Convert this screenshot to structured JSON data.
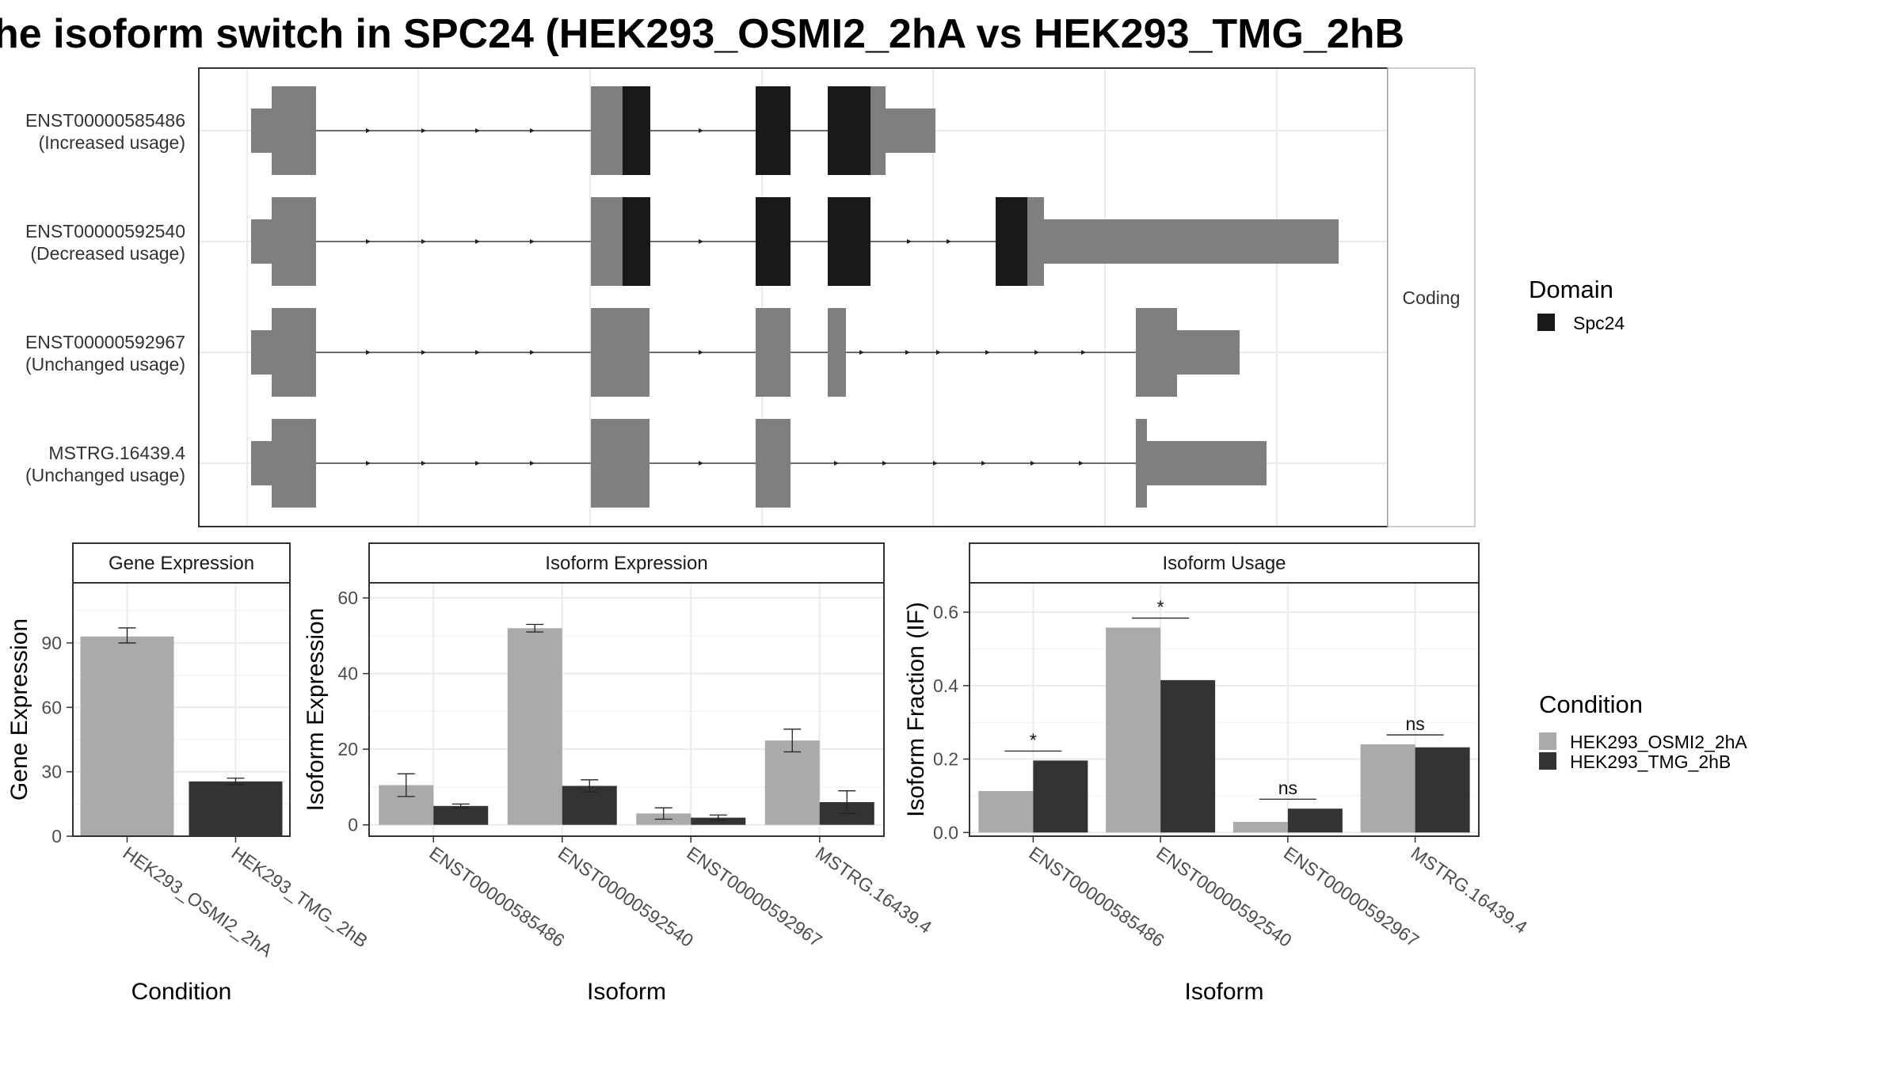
{
  "title": "he isoform switch in SPC24 (HEK293_OSMI2_2hA vs HEK293_TMG_2hB",
  "colors": {
    "cond_a": "#aaaaaa",
    "cond_b": "#333333",
    "exon": "#7f7f7f",
    "domain": "#191919",
    "panel_border": "#333333",
    "strip_fill": "#ffffff",
    "grid": "#ebebeb",
    "text": "#333333"
  },
  "structure": {
    "facet_label": "Coding",
    "transcripts": [
      {
        "id": "ENST00000585486",
        "usage": "(Increased usage)"
      },
      {
        "id": "ENST00000592540",
        "usage": "(Decreased usage)"
      },
      {
        "id": "ENST00000592967",
        "usage": "(Unchanged usage)"
      },
      {
        "id": "MSTRG.16439.4",
        "usage": "(Unchanged usage)"
      }
    ]
  },
  "legends": {
    "domain": {
      "title": "Domain",
      "items": [
        {
          "label": "Spc24",
          "color": "#191919"
        }
      ]
    },
    "condition": {
      "title": "Condition",
      "items": [
        {
          "label": "HEK293_OSMI2_2hA",
          "color": "#aaaaaa"
        },
        {
          "label": "HEK293_TMG_2hB",
          "color": "#333333"
        }
      ]
    }
  },
  "chart_data": [
    {
      "type": "bar",
      "title": "Gene Expression",
      "xlabel": "Condition",
      "ylabel": "Gene Expression",
      "categories": [
        "HEK293_OSMI2_2hA",
        "HEK293_TMG_2hB"
      ],
      "values": [
        93,
        25.5
      ],
      "error": [
        [
          90,
          97
        ],
        [
          24,
          27
        ]
      ],
      "ylim": [
        0,
        118
      ],
      "yticks": [
        0,
        30,
        60,
        90
      ]
    },
    {
      "type": "bar",
      "title": "Isoform Expression",
      "xlabel": "Isoform",
      "ylabel": "Isoform Expression",
      "categories": [
        "ENST00000585486",
        "ENST00000592540",
        "ENST00000592967",
        "MSTRG.16439.4"
      ],
      "series": [
        {
          "name": "HEK293_OSMI2_2hA",
          "values": [
            10.5,
            52,
            3,
            22.3
          ],
          "error": [
            [
              7.5,
              13.5
            ],
            [
              51,
              53
            ],
            [
              1.5,
              4.5
            ],
            [
              19.3,
              25.3
            ]
          ]
        },
        {
          "name": "HEK293_TMG_2hB",
          "values": [
            5,
            10.3,
            1.9,
            6
          ],
          "error": [
            [
              4.5,
              5.5
            ],
            [
              8.7,
              11.9
            ],
            [
              1.2,
              2.6
            ],
            [
              3,
              9
            ]
          ]
        }
      ],
      "ylim": [
        -3,
        64
      ],
      "yticks": [
        0,
        20,
        40,
        60
      ]
    },
    {
      "type": "bar",
      "title": "Isoform Usage",
      "xlabel": "Isoform",
      "ylabel": "Isoform Fraction (IF)",
      "categories": [
        "ENST00000585486",
        "ENST00000592540",
        "ENST00000592967",
        "MSTRG.16439.4"
      ],
      "series": [
        {
          "name": "HEK293_OSMI2_2hA",
          "values": [
            0.113,
            0.558,
            0.029,
            0.24
          ]
        },
        {
          "name": "HEK293_TMG_2hB",
          "values": [
            0.196,
            0.415,
            0.065,
            0.232
          ]
        }
      ],
      "significance": [
        "*",
        "*",
        "ns",
        "ns"
      ],
      "ylim": [
        -0.01,
        0.68
      ],
      "yticks": [
        0.0,
        0.2,
        0.4,
        0.6
      ]
    }
  ]
}
